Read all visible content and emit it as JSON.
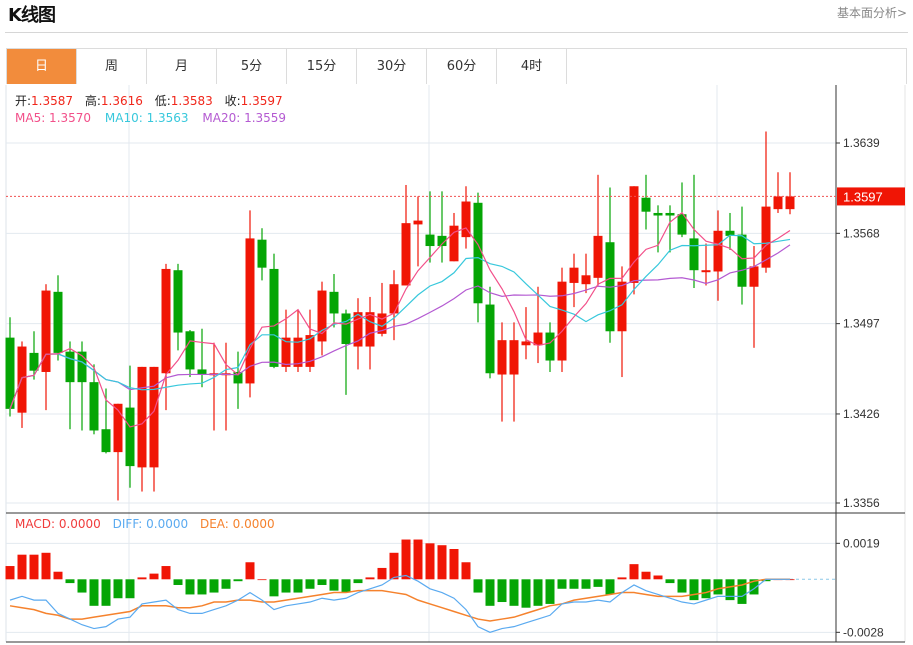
{
  "header": {
    "title": "K线图",
    "link": "基本面分析>"
  },
  "tabs": [
    {
      "label": "日",
      "active": true
    },
    {
      "label": "周"
    },
    {
      "label": "月"
    },
    {
      "label": "5分"
    },
    {
      "label": "15分"
    },
    {
      "label": "30分"
    },
    {
      "label": "60分"
    },
    {
      "label": "4时"
    }
  ],
  "ohlc_legend": {
    "open_label": "开:",
    "open": "1.3587",
    "high_label": "高:",
    "high": "1.3616",
    "low_label": "低:",
    "low": "1.3583",
    "close_label": "收:",
    "close": "1.3597"
  },
  "ma_legend": {
    "ma5": "MA5: 1.3570",
    "ma10": "MA10: 1.3563",
    "ma20": "MA20: 1.3559"
  },
  "macd_legend": {
    "macd": "MACD: 0.0000",
    "diff": "DIFF: 0.0000",
    "dea": "DEA: 0.0000"
  },
  "colors": {
    "up": "#f01505",
    "down": "#05a505",
    "ma5": "#f2508a",
    "ma10": "#38c8dc",
    "ma20": "#b45ad2",
    "diff": "#5aaaf0",
    "dea": "#f5822d",
    "accent": "#f28c3c"
  },
  "chart_data": {
    "type": "candlestick",
    "price_axis": {
      "ticks": [
        "1.3639",
        "1.3568",
        "1.3497",
        "1.3426",
        "1.3356"
      ],
      "range": [
        1.3356,
        1.3639
      ]
    },
    "last_price": "1.3597",
    "candles": [
      [
        1.3486,
        1.3502,
        1.3424,
        1.343
      ],
      [
        1.3427,
        1.3483,
        1.3415,
        1.3479
      ],
      [
        1.3474,
        1.3491,
        1.3453,
        1.346
      ],
      [
        1.3459,
        1.3528,
        1.3429,
        1.3523
      ],
      [
        1.3522,
        1.3535,
        1.3468,
        1.3474
      ],
      [
        1.3475,
        1.3483,
        1.3414,
        1.3451
      ],
      [
        1.3475,
        1.3483,
        1.3413,
        1.3451
      ],
      [
        1.3451,
        1.3465,
        1.341,
        1.3413
      ],
      [
        1.3414,
        1.3446,
        1.3395,
        1.3396
      ],
      [
        1.3396,
        1.3434,
        1.3358,
        1.3434
      ],
      [
        1.3431,
        1.3464,
        1.3368,
        1.3385
      ],
      [
        1.3384,
        1.3463,
        1.3365,
        1.3463
      ],
      [
        1.3384,
        1.3463,
        1.3365,
        1.3463
      ],
      [
        1.3458,
        1.3544,
        1.3429,
        1.354
      ],
      [
        1.3539,
        1.3544,
        1.3476,
        1.349
      ],
      [
        1.3491,
        1.3492,
        1.3455,
        1.3461
      ],
      [
        1.3461,
        1.3493,
        1.3447,
        1.3457
      ],
      [
        1.3457,
        1.3482,
        1.3413,
        1.3458
      ],
      [
        1.3457,
        1.3482,
        1.3413,
        1.3458
      ],
      [
        1.3459,
        1.3475,
        1.343,
        1.345
      ],
      [
        1.345,
        1.3586,
        1.3439,
        1.3564
      ],
      [
        1.3563,
        1.3572,
        1.3531,
        1.3541
      ],
      [
        1.354,
        1.3552,
        1.3462,
        1.3463
      ],
      [
        1.3463,
        1.3508,
        1.3459,
        1.3486
      ],
      [
        1.3463,
        1.3508,
        1.3459,
        1.3486
      ],
      [
        1.3463,
        1.3508,
        1.3459,
        1.3488
      ],
      [
        1.3483,
        1.353,
        1.3472,
        1.3523
      ],
      [
        1.3522,
        1.3536,
        1.3494,
        1.3505
      ],
      [
        1.3505,
        1.3508,
        1.3441,
        1.3481
      ],
      [
        1.3479,
        1.3517,
        1.3461,
        1.3506
      ],
      [
        1.3479,
        1.3518,
        1.3461,
        1.3506
      ],
      [
        1.3489,
        1.3529,
        1.3487,
        1.3505
      ],
      [
        1.3505,
        1.3539,
        1.3484,
        1.3528
      ],
      [
        1.3527,
        1.3606,
        1.3527,
        1.3576
      ],
      [
        1.3575,
        1.3597,
        1.3542,
        1.3578
      ],
      [
        1.3567,
        1.3601,
        1.3545,
        1.3558
      ],
      [
        1.3566,
        1.3601,
        1.3545,
        1.3558
      ],
      [
        1.3546,
        1.3584,
        1.3546,
        1.3574
      ],
      [
        1.3565,
        1.3605,
        1.3556,
        1.3593
      ],
      [
        1.3592,
        1.36,
        1.3498,
        1.3513
      ],
      [
        1.3512,
        1.3526,
        1.3454,
        1.3458
      ],
      [
        1.3457,
        1.3498,
        1.342,
        1.3484
      ],
      [
        1.3457,
        1.3498,
        1.342,
        1.3484
      ],
      [
        1.348,
        1.351,
        1.3469,
        1.3483
      ],
      [
        1.348,
        1.3526,
        1.3466,
        1.349
      ],
      [
        1.349,
        1.3498,
        1.3459,
        1.3468
      ],
      [
        1.3468,
        1.3541,
        1.3459,
        1.353
      ],
      [
        1.3529,
        1.3552,
        1.351,
        1.3541
      ],
      [
        1.3528,
        1.3552,
        1.3521,
        1.3535
      ],
      [
        1.3533,
        1.3614,
        1.3527,
        1.3566
      ],
      [
        1.3561,
        1.3604,
        1.3482,
        1.3491
      ],
      [
        1.3491,
        1.3542,
        1.3455,
        1.353
      ],
      [
        1.3529,
        1.3605,
        1.352,
        1.3605
      ],
      [
        1.3596,
        1.3614,
        1.3571,
        1.3585
      ],
      [
        1.3584,
        1.359,
        1.3553,
        1.3582
      ],
      [
        1.3584,
        1.359,
        1.3553,
        1.3582
      ],
      [
        1.3583,
        1.3608,
        1.3565,
        1.3567
      ],
      [
        1.3564,
        1.3614,
        1.3525,
        1.3539
      ],
      [
        1.3538,
        1.356,
        1.3527,
        1.3539
      ],
      [
        1.3538,
        1.3586,
        1.3515,
        1.357
      ],
      [
        1.357,
        1.3584,
        1.3555,
        1.3566
      ],
      [
        1.3567,
        1.3589,
        1.3512,
        1.3526
      ],
      [
        1.3526,
        1.3558,
        1.3478,
        1.3542
      ],
      [
        1.3541,
        1.3648,
        1.3537,
        1.3589
      ],
      [
        1.3587,
        1.3616,
        1.3584,
        1.3597
      ],
      [
        1.3587,
        1.3616,
        1.3583,
        1.3597
      ]
    ],
    "macd_axis": {
      "ticks": [
        "0.0019",
        "-0.0028"
      ],
      "range": [
        -0.0028,
        0.0019
      ]
    },
    "macd_hist": [
      0.0007,
      0.0013,
      0.0013,
      0.0014,
      0.0004,
      -0.0002,
      -0.0007,
      -0.0014,
      -0.0014,
      -0.001,
      -0.001,
      0.0001,
      0.0003,
      0.0007,
      -0.0003,
      -0.0008,
      -0.0008,
      -0.0007,
      -0.0005,
      -0.0001,
      0.0009,
      0.0,
      -0.0009,
      -0.0007,
      -0.0007,
      -0.0005,
      -0.0003,
      -0.0006,
      -0.0007,
      -0.0002,
      0.0001,
      0.0006,
      0.0014,
      0.0021,
      0.0021,
      0.0019,
      0.0018,
      0.0016,
      0.0009,
      -0.0007,
      -0.0014,
      -0.0012,
      -0.0014,
      -0.0015,
      -0.0014,
      -0.0013,
      -0.0005,
      -0.0005,
      -0.0005,
      -0.0004,
      -0.0008,
      0.0001,
      0.0008,
      0.0004,
      0.0002,
      -0.0002,
      -0.0007,
      -0.0011,
      -0.001,
      -0.0008,
      -0.0011,
      -0.0013,
      -0.0008,
      -0.0001,
      0.0,
      0.0
    ],
    "diff": [
      -0.0011,
      -0.0009,
      -0.0011,
      -0.0011,
      -0.0018,
      -0.0021,
      -0.0024,
      -0.0026,
      -0.0025,
      -0.0021,
      -0.002,
      -0.0013,
      -0.0012,
      -0.0011,
      -0.0016,
      -0.0018,
      -0.0018,
      -0.0016,
      -0.0014,
      -0.0011,
      -0.0007,
      -0.0011,
      -0.0016,
      -0.0014,
      -0.0013,
      -0.0012,
      -0.001,
      -0.0011,
      -0.001,
      -0.0007,
      -0.0005,
      -0.0003,
      0.0001,
      0.0002,
      -0.0001,
      -0.0005,
      -0.0007,
      -0.001,
      -0.0016,
      -0.0025,
      -0.0028,
      -0.0026,
      -0.0025,
      -0.0023,
      -0.0021,
      -0.0019,
      -0.0013,
      -0.0012,
      -0.0012,
      -0.0011,
      -0.0012,
      -0.0007,
      -0.0003,
      -0.0006,
      -0.0008,
      -0.001,
      -0.0012,
      -0.0013,
      -0.0011,
      -0.0009,
      -0.0009,
      -0.0009,
      -0.0005,
      0.0,
      0.0,
      0.0
    ],
    "dea": [
      -0.0014,
      -0.0015,
      -0.0016,
      -0.0018,
      -0.0019,
      -0.0021,
      -0.0021,
      -0.002,
      -0.0019,
      -0.0018,
      -0.0017,
      -0.0014,
      -0.0014,
      -0.0014,
      -0.0015,
      -0.0015,
      -0.0014,
      -0.0012,
      -0.0012,
      -0.0011,
      -0.0011,
      -0.0012,
      -0.0012,
      -0.0011,
      -0.001,
      -0.0009,
      -0.0008,
      -0.0007,
      -0.0007,
      -0.0006,
      -0.0006,
      -0.0006,
      -0.0007,
      -0.0008,
      -0.0011,
      -0.0013,
      -0.0015,
      -0.0017,
      -0.0019,
      -0.0021,
      -0.0022,
      -0.0021,
      -0.002,
      -0.0018,
      -0.0016,
      -0.0014,
      -0.0013,
      -0.0011,
      -0.001,
      -0.0009,
      -0.0008,
      -0.0007,
      -0.0007,
      -0.0008,
      -0.0009,
      -0.0009,
      -0.0009,
      -0.0008,
      -0.0007,
      -0.0005,
      -0.0004,
      -0.0003,
      -0.0001,
      0.0,
      0.0,
      0.0
    ]
  }
}
